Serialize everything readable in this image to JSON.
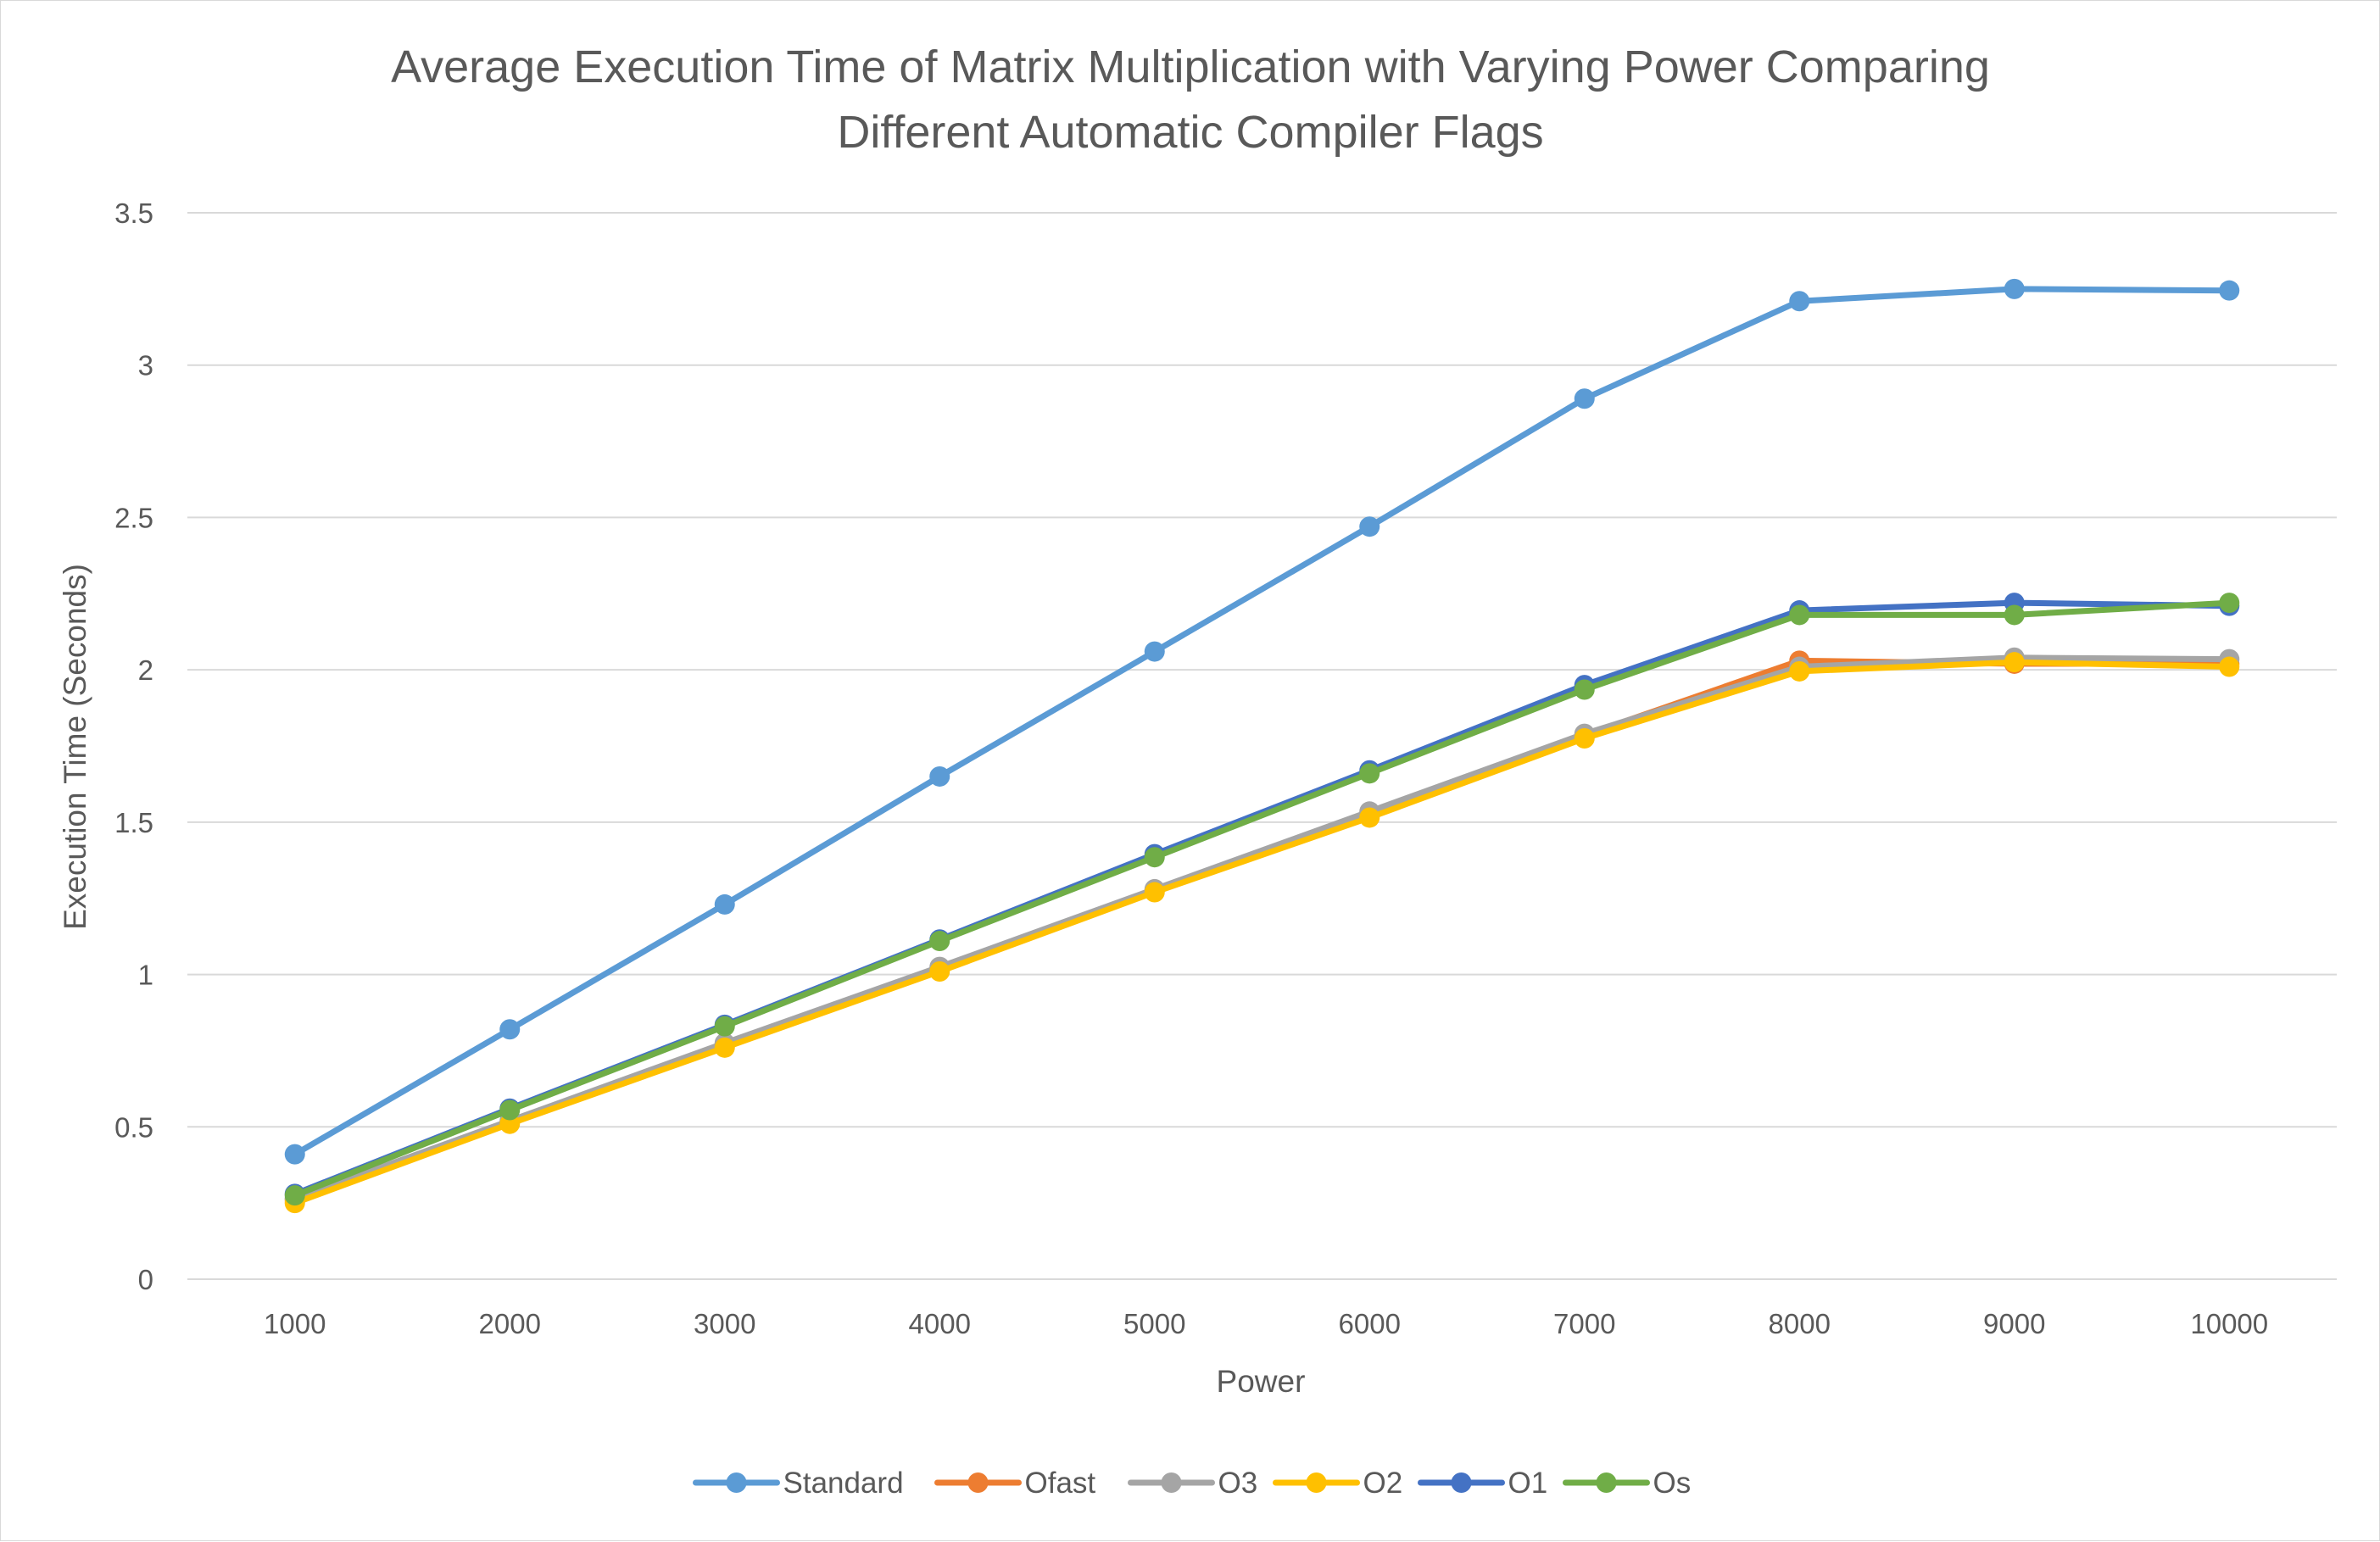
{
  "chart_data": {
    "type": "line",
    "title_lines": [
      "Average Execution Time of Matrix Multiplication with Varying Power Comparing",
      "Different Automatic Compiler Flags"
    ],
    "xlabel": "Power",
    "ylabel": "Execution Time (Seconds)",
    "x": [
      1000,
      2000,
      3000,
      4000,
      5000,
      6000,
      7000,
      8000,
      9000,
      10000
    ],
    "x_tick_labels": [
      "1000",
      "2000",
      "3000",
      "4000",
      "5000",
      "6000",
      "7000",
      "8000",
      "9000",
      "10000"
    ],
    "ylim": [
      0,
      3.5
    ],
    "y_ticks": [
      0,
      0.5,
      1,
      1.5,
      2,
      2.5,
      3,
      3.5
    ],
    "y_tick_labels": [
      "0",
      "0.5",
      "1",
      "1.5",
      "2",
      "2.5",
      "3",
      "3.5"
    ],
    "grid": "horizontal",
    "legend_position": "bottom",
    "series": [
      {
        "name": "Standard",
        "color": "#5b9bd5",
        "values": [
          0.41,
          0.82,
          1.23,
          1.65,
          2.06,
          2.47,
          2.89,
          3.21,
          3.25,
          3.245
        ]
      },
      {
        "name": "Ofast",
        "color": "#ed7d31",
        "values": [
          0.26,
          0.515,
          0.77,
          1.02,
          1.275,
          1.53,
          1.785,
          2.03,
          2.02,
          2.02
        ]
      },
      {
        "name": "O3",
        "color": "#a5a5a5",
        "values": [
          0.265,
          0.52,
          0.775,
          1.025,
          1.28,
          1.535,
          1.79,
          2.01,
          2.04,
          2.035
        ]
      },
      {
        "name": "O2",
        "color": "#ffc000",
        "values": [
          0.25,
          0.51,
          0.76,
          1.01,
          1.27,
          1.515,
          1.775,
          1.995,
          2.025,
          2.01
        ]
      },
      {
        "name": "O1",
        "color": "#4472c4",
        "values": [
          0.28,
          0.56,
          0.835,
          1.115,
          1.395,
          1.67,
          1.95,
          2.195,
          2.22,
          2.21
        ]
      },
      {
        "name": "Os",
        "color": "#70ad47",
        "values": [
          0.275,
          0.555,
          0.83,
          1.11,
          1.385,
          1.66,
          1.935,
          2.18,
          2.18,
          2.22
        ]
      }
    ]
  }
}
